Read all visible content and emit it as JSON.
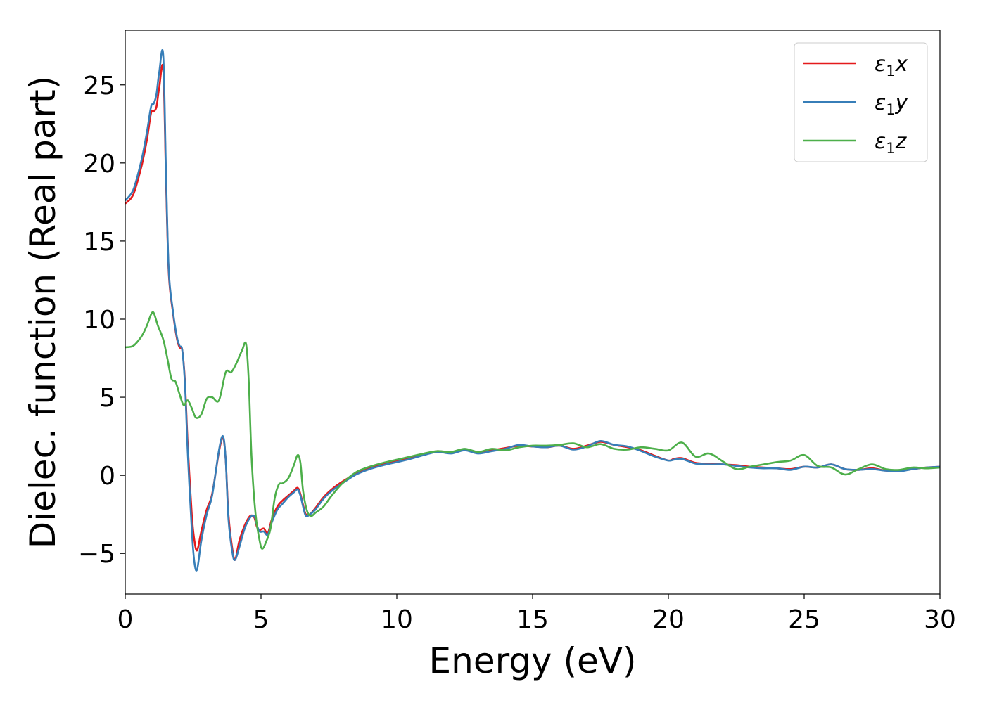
{
  "chart_data": {
    "type": "line",
    "xlabel": "Energy (eV)",
    "ylabel": "Dielec. function (Real part)",
    "xlim": [
      0,
      30
    ],
    "ylim": [
      -7.6,
      28.5
    ],
    "xticks": [
      0,
      5,
      10,
      15,
      20,
      25,
      30
    ],
    "xtick_labels": [
      "0",
      "5",
      "10",
      "15",
      "20",
      "25",
      "30"
    ],
    "yticks": [
      -5,
      0,
      5,
      10,
      15,
      20,
      25
    ],
    "ytick_labels": [
      "−5",
      "0",
      "5",
      "10",
      "15",
      "20",
      "25"
    ],
    "grid": false,
    "legend_position": "top-right",
    "series": [
      {
        "name": "ε₁x",
        "label_base": "ε",
        "label_sub": "1",
        "label_tail": "x",
        "color": "#e41a1c",
        "x": [
          0,
          0.3,
          0.6,
          0.8,
          0.95,
          1.05,
          1.15,
          1.25,
          1.4,
          1.5,
          1.6,
          1.75,
          1.9,
          2.0,
          2.1,
          2.2,
          2.3,
          2.45,
          2.55,
          2.65,
          2.8,
          3.0,
          3.2,
          3.45,
          3.6,
          3.7,
          3.8,
          3.95,
          4.05,
          4.2,
          4.4,
          4.6,
          4.75,
          4.85,
          4.95,
          5.1,
          5.25,
          5.4,
          5.6,
          5.8,
          6.0,
          6.2,
          6.35,
          6.45,
          6.55,
          6.65,
          6.8,
          7.0,
          7.3,
          7.6,
          8.0,
          8.5,
          9.0,
          9.5,
          10.0,
          10.5,
          11.0,
          11.5,
          12.0,
          12.5,
          13.0,
          13.5,
          14.0,
          14.5,
          15.0,
          15.5,
          16.0,
          16.5,
          17.0,
          17.5,
          18.0,
          18.5,
          19.0,
          19.5,
          20.0,
          20.2,
          20.5,
          21.0,
          21.5,
          22.0,
          22.5,
          23.0,
          23.5,
          24.0,
          24.5,
          25.0,
          25.5,
          26.0,
          26.5,
          27.0,
          27.5,
          28.0,
          28.5,
          29.0,
          29.5,
          30.0
        ],
        "y": [
          17.4,
          18.0,
          19.8,
          21.5,
          23.2,
          23.3,
          23.6,
          24.8,
          26.0,
          19.0,
          13.0,
          10.5,
          8.8,
          8.2,
          8.0,
          6.0,
          2.0,
          -2.5,
          -4.2,
          -4.8,
          -3.6,
          -2.2,
          -1.2,
          1.5,
          2.4,
          1.0,
          -2.5,
          -4.8,
          -5.4,
          -4.2,
          -3.2,
          -2.6,
          -2.7,
          -3.3,
          -3.5,
          -3.4,
          -3.7,
          -2.8,
          -2.0,
          -1.6,
          -1.3,
          -1.0,
          -0.8,
          -1.2,
          -1.9,
          -2.5,
          -2.5,
          -2.1,
          -1.4,
          -0.9,
          -0.4,
          0.1,
          0.45,
          0.7,
          0.9,
          1.1,
          1.35,
          1.55,
          1.45,
          1.65,
          1.45,
          1.6,
          1.75,
          1.9,
          1.85,
          1.8,
          1.9,
          1.7,
          1.9,
          2.15,
          1.95,
          1.8,
          1.6,
          1.25,
          0.95,
          1.05,
          1.1,
          0.8,
          0.75,
          0.7,
          0.65,
          0.55,
          0.5,
          0.45,
          0.4,
          0.55,
          0.5,
          0.7,
          0.4,
          0.35,
          0.45,
          0.3,
          0.3,
          0.4,
          0.5,
          0.55
        ]
      },
      {
        "name": "ε₁y",
        "label_base": "ε",
        "label_sub": "1",
        "label_tail": "y",
        "color": "#377eb8",
        "x": [
          0,
          0.3,
          0.6,
          0.8,
          0.95,
          1.05,
          1.15,
          1.25,
          1.4,
          1.5,
          1.6,
          1.75,
          1.9,
          2.0,
          2.1,
          2.2,
          2.3,
          2.45,
          2.55,
          2.65,
          2.8,
          3.0,
          3.2,
          3.45,
          3.6,
          3.7,
          3.8,
          3.95,
          4.05,
          4.2,
          4.4,
          4.6,
          4.75,
          4.85,
          4.95,
          5.1,
          5.25,
          5.4,
          5.6,
          5.8,
          6.0,
          6.2,
          6.35,
          6.45,
          6.55,
          6.65,
          6.8,
          7.0,
          7.3,
          7.6,
          8.0,
          8.5,
          9.0,
          9.5,
          10.0,
          10.5,
          11.0,
          11.5,
          12.0,
          12.5,
          13.0,
          13.5,
          14.0,
          14.5,
          15.0,
          15.5,
          16.0,
          16.5,
          17.0,
          17.5,
          18.0,
          18.5,
          19.0,
          19.5,
          20.0,
          20.2,
          20.5,
          21.0,
          21.5,
          22.0,
          22.5,
          23.0,
          23.5,
          24.0,
          24.5,
          25.0,
          25.5,
          26.0,
          26.5,
          27.0,
          27.5,
          28.0,
          28.5,
          29.0,
          29.5,
          30.0
        ],
        "y": [
          17.6,
          18.3,
          20.2,
          22.0,
          23.6,
          23.8,
          24.4,
          25.8,
          26.9,
          19.5,
          13.2,
          10.6,
          8.9,
          8.3,
          8.0,
          5.8,
          1.5,
          -3.5,
          -5.6,
          -6.0,
          -4.2,
          -2.5,
          -1.3,
          1.6,
          2.5,
          1.0,
          -2.8,
          -5.0,
          -5.4,
          -4.6,
          -3.4,
          -2.7,
          -2.6,
          -3.2,
          -3.6,
          -3.6,
          -3.8,
          -3.0,
          -2.2,
          -1.8,
          -1.4,
          -1.1,
          -0.9,
          -1.3,
          -2.0,
          -2.6,
          -2.5,
          -2.2,
          -1.5,
          -1.0,
          -0.5,
          0.05,
          0.4,
          0.65,
          0.85,
          1.05,
          1.3,
          1.5,
          1.4,
          1.6,
          1.4,
          1.55,
          1.7,
          1.95,
          1.85,
          1.8,
          1.9,
          1.65,
          1.85,
          2.2,
          1.95,
          1.85,
          1.55,
          1.2,
          0.95,
          1.0,
          1.05,
          0.75,
          0.7,
          0.7,
          0.6,
          0.5,
          0.45,
          0.45,
          0.35,
          0.55,
          0.5,
          0.7,
          0.4,
          0.35,
          0.4,
          0.3,
          0.25,
          0.4,
          0.5,
          0.55
        ]
      },
      {
        "name": "ε₁z",
        "label_base": "ε",
        "label_sub": "1",
        "label_tail": "z",
        "color": "#4daf4a",
        "x": [
          0,
          0.3,
          0.6,
          0.8,
          0.95,
          1.05,
          1.2,
          1.4,
          1.55,
          1.7,
          1.85,
          2.0,
          2.15,
          2.3,
          2.45,
          2.6,
          2.8,
          3.0,
          3.2,
          3.45,
          3.7,
          3.9,
          4.1,
          4.3,
          4.45,
          4.55,
          4.65,
          4.8,
          4.95,
          5.05,
          5.2,
          5.35,
          5.5,
          5.65,
          5.8,
          6.0,
          6.2,
          6.35,
          6.45,
          6.55,
          6.7,
          6.85,
          7.0,
          7.3,
          7.6,
          8.0,
          8.5,
          9.0,
          9.5,
          10.0,
          10.5,
          11.0,
          11.5,
          12.0,
          12.5,
          13.0,
          13.5,
          14.0,
          14.5,
          15.0,
          15.5,
          16.0,
          16.5,
          17.0,
          17.5,
          18.0,
          18.5,
          19.0,
          19.5,
          20.0,
          20.5,
          21.0,
          21.5,
          22.0,
          22.5,
          23.0,
          23.5,
          24.0,
          24.5,
          25.0,
          25.5,
          26.0,
          26.5,
          27.0,
          27.5,
          28.0,
          28.5,
          29.0,
          29.5,
          30.0
        ],
        "y": [
          8.2,
          8.3,
          8.9,
          9.6,
          10.3,
          10.4,
          9.6,
          8.7,
          7.5,
          6.2,
          6.0,
          5.2,
          4.5,
          4.8,
          4.3,
          3.7,
          3.9,
          4.9,
          5.0,
          4.8,
          6.6,
          6.6,
          7.2,
          8.0,
          8.4,
          6.0,
          1.2,
          -2.5,
          -4.2,
          -4.7,
          -4.2,
          -3.4,
          -1.5,
          -0.6,
          -0.5,
          -0.2,
          0.6,
          1.3,
          0.8,
          -1.0,
          -2.3,
          -2.6,
          -2.4,
          -2.0,
          -1.3,
          -0.5,
          0.2,
          0.55,
          0.8,
          1.0,
          1.2,
          1.4,
          1.55,
          1.5,
          1.7,
          1.5,
          1.7,
          1.6,
          1.8,
          1.9,
          1.9,
          1.95,
          2.05,
          1.8,
          2.0,
          1.7,
          1.65,
          1.8,
          1.7,
          1.6,
          2.1,
          1.2,
          1.4,
          0.9,
          0.4,
          0.55,
          0.7,
          0.85,
          0.95,
          1.3,
          0.6,
          0.5,
          0.05,
          0.4,
          0.7,
          0.4,
          0.35,
          0.5,
          0.45,
          0.5
        ]
      }
    ]
  }
}
